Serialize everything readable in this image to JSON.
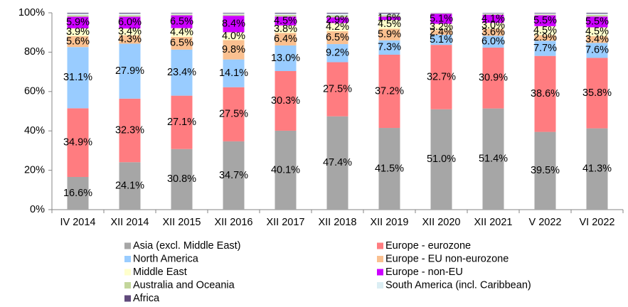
{
  "chart_data": {
    "type": "stacked_bar",
    "categories": [
      "IV 2014",
      "XII 2014",
      "XII 2015",
      "XII 2016",
      "XII 2017",
      "XII 2018",
      "XII 2019",
      "XII 2020",
      "XII 2021",
      "V 2022",
      "VI 2022"
    ],
    "ylim": [
      0,
      100
    ],
    "yticks": [
      {
        "value": 0,
        "label": "0%"
      },
      {
        "value": 20,
        "label": "20%"
      },
      {
        "value": 40,
        "label": "40%"
      },
      {
        "value": 60,
        "label": "60%"
      },
      {
        "value": 80,
        "label": "80%"
      },
      {
        "value": 100,
        "label": "100%"
      }
    ],
    "series": [
      {
        "name": "Asia (excl. Middle East)",
        "color": "#a6a6a6",
        "values": [
          16.6,
          24.1,
          30.8,
          34.7,
          40.1,
          47.4,
          41.5,
          51.0,
          51.4,
          39.5,
          41.3
        ],
        "value_labels": [
          "16.6%",
          "24.1%",
          "30.8%",
          "34.7%",
          "40.1%",
          "47.4%",
          "41.5%",
          "51.0%",
          "51.4%",
          "39.5%",
          "41.3%"
        ]
      },
      {
        "name": "Europe - eurozone",
        "color": "#ff7c80",
        "values": [
          34.9,
          32.3,
          27.1,
          27.5,
          30.3,
          27.5,
          37.2,
          32.7,
          30.9,
          38.6,
          35.8
        ],
        "value_labels": [
          "34.9%",
          "32.3%",
          "27.1%",
          "27.5%",
          "30.3%",
          "27.5%",
          "37.2%",
          "32.7%",
          "30.9%",
          "38.6%",
          "35.8%"
        ]
      },
      {
        "name": "North America",
        "color": "#99ccff",
        "values": [
          31.1,
          27.9,
          23.4,
          14.1,
          13.0,
          9.2,
          7.3,
          5.1,
          6.0,
          7.7,
          7.6
        ],
        "value_labels": [
          "31.1%",
          "27.9%",
          "23.4%",
          "14.1%",
          "13.0%",
          "9.2%",
          "7.3%",
          "5.1%",
          "6.0%",
          "7.7%",
          "7.6%"
        ]
      },
      {
        "name": "Europe - EU non-eurozone",
        "color": "#fac090",
        "values": [
          5.6,
          4.3,
          6.5,
          9.8,
          6.4,
          6.5,
          5.9,
          2.4,
          3.6,
          2.9,
          3.4
        ],
        "value_labels": [
          "5.6%",
          "4.3%",
          "6.5%",
          "9.8%",
          "6.4%",
          "6.5%",
          "5.9%",
          "2.4%",
          "3.6%",
          "2.9%",
          "3.4%"
        ]
      },
      {
        "name": "Middle East",
        "color": "#ffffcc",
        "values": [
          3.9,
          3.4,
          4.4,
          4.0,
          3.8,
          4.2,
          4.5,
          3.2,
          3.0,
          4.5,
          4.5
        ],
        "value_labels": [
          "3.9%",
          "3.4%",
          "4.4%",
          "4.0%",
          "3.8%",
          "4.2%",
          "4.5%",
          "3.2%",
          "3.0%",
          "4.5%",
          "4.5%"
        ]
      },
      {
        "name": "Europe - non-EU",
        "color": "#cc00ff",
        "values": [
          5.9,
          6.0,
          6.5,
          8.4,
          4.5,
          2.9,
          1.6,
          5.1,
          4.1,
          5.5,
          5.5
        ],
        "value_labels": [
          "5.9%",
          "6.0%",
          "6.5%",
          "8.4%",
          "4.5%",
          "2.9%",
          "1.6%",
          "5.1%",
          "4.1%",
          "5.5%",
          "5.5%"
        ]
      },
      {
        "name": "Australia and Oceania",
        "color": "#c3d69b",
        "values": [
          0.8,
          0.8,
          0.5,
          0.6,
          0.8,
          1.0,
          0.8,
          0.2,
          0.4,
          0.5,
          0.8
        ]
      },
      {
        "name": "South America (incl. Caribbean)",
        "color": "#dbeef4",
        "values": [
          0.8,
          0.8,
          0.5,
          0.6,
          0.7,
          0.9,
          0.8,
          0.2,
          0.4,
          0.5,
          0.7
        ]
      },
      {
        "name": "Africa",
        "color": "#604a7b",
        "values": [
          0.4,
          0.4,
          0.3,
          0.3,
          0.4,
          0.4,
          0.4,
          0.1,
          0.2,
          0.3,
          0.4
        ]
      }
    ]
  }
}
